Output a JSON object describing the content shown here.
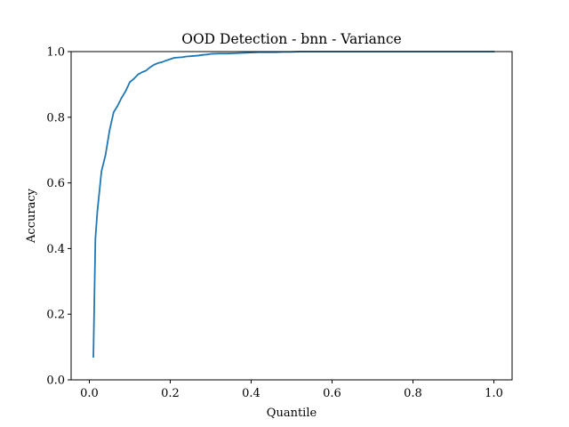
{
  "chart_data": {
    "type": "line",
    "title": "OOD Detection - bnn - Variance",
    "xlabel": "Quantile",
    "ylabel": "Accuracy",
    "xlim": [
      -0.045,
      1.045
    ],
    "ylim": [
      0.0,
      1.0
    ],
    "xticks": [
      0.0,
      0.2,
      0.4,
      0.6,
      0.8,
      1.0
    ],
    "xtick_labels": [
      "0.0",
      "0.2",
      "0.4",
      "0.6",
      "0.8",
      "1.0"
    ],
    "yticks": [
      0.0,
      0.2,
      0.4,
      0.6,
      0.8,
      1.0
    ],
    "ytick_labels": [
      "0.0",
      "0.2",
      "0.4",
      "0.6",
      "0.8",
      "1.0"
    ],
    "grid": false,
    "series": [
      {
        "color": "#1f77b4",
        "x": [
          0.01,
          0.015,
          0.02,
          0.03,
          0.04,
          0.05,
          0.06,
          0.07,
          0.08,
          0.09,
          0.1,
          0.11,
          0.12,
          0.13,
          0.14,
          0.15,
          0.16,
          0.17,
          0.18,
          0.19,
          0.2,
          0.21,
          0.22,
          0.23,
          0.24,
          0.25,
          0.26,
          0.27,
          0.28,
          0.29,
          0.3,
          0.32,
          0.34,
          0.36,
          0.38,
          0.4,
          0.42,
          0.44,
          0.46,
          0.48,
          0.5,
          0.52,
          0.55,
          0.6,
          0.65,
          0.7,
          0.75,
          0.8,
          0.85,
          0.9,
          0.95,
          1.0
        ],
        "y": [
          0.07,
          0.43,
          0.515,
          0.635,
          0.685,
          0.76,
          0.815,
          0.835,
          0.86,
          0.88,
          0.907,
          0.917,
          0.93,
          0.937,
          0.942,
          0.952,
          0.96,
          0.965,
          0.968,
          0.973,
          0.977,
          0.981,
          0.982,
          0.983,
          0.985,
          0.986,
          0.987,
          0.988,
          0.99,
          0.991,
          0.993,
          0.994,
          0.994,
          0.995,
          0.996,
          0.997,
          0.998,
          0.998,
          0.998,
          0.999,
          0.999,
          1.0,
          1.0,
          1.0,
          1.0,
          1.0,
          1.0,
          1.0,
          1.0,
          1.0,
          1.0,
          1.0
        ]
      }
    ]
  }
}
